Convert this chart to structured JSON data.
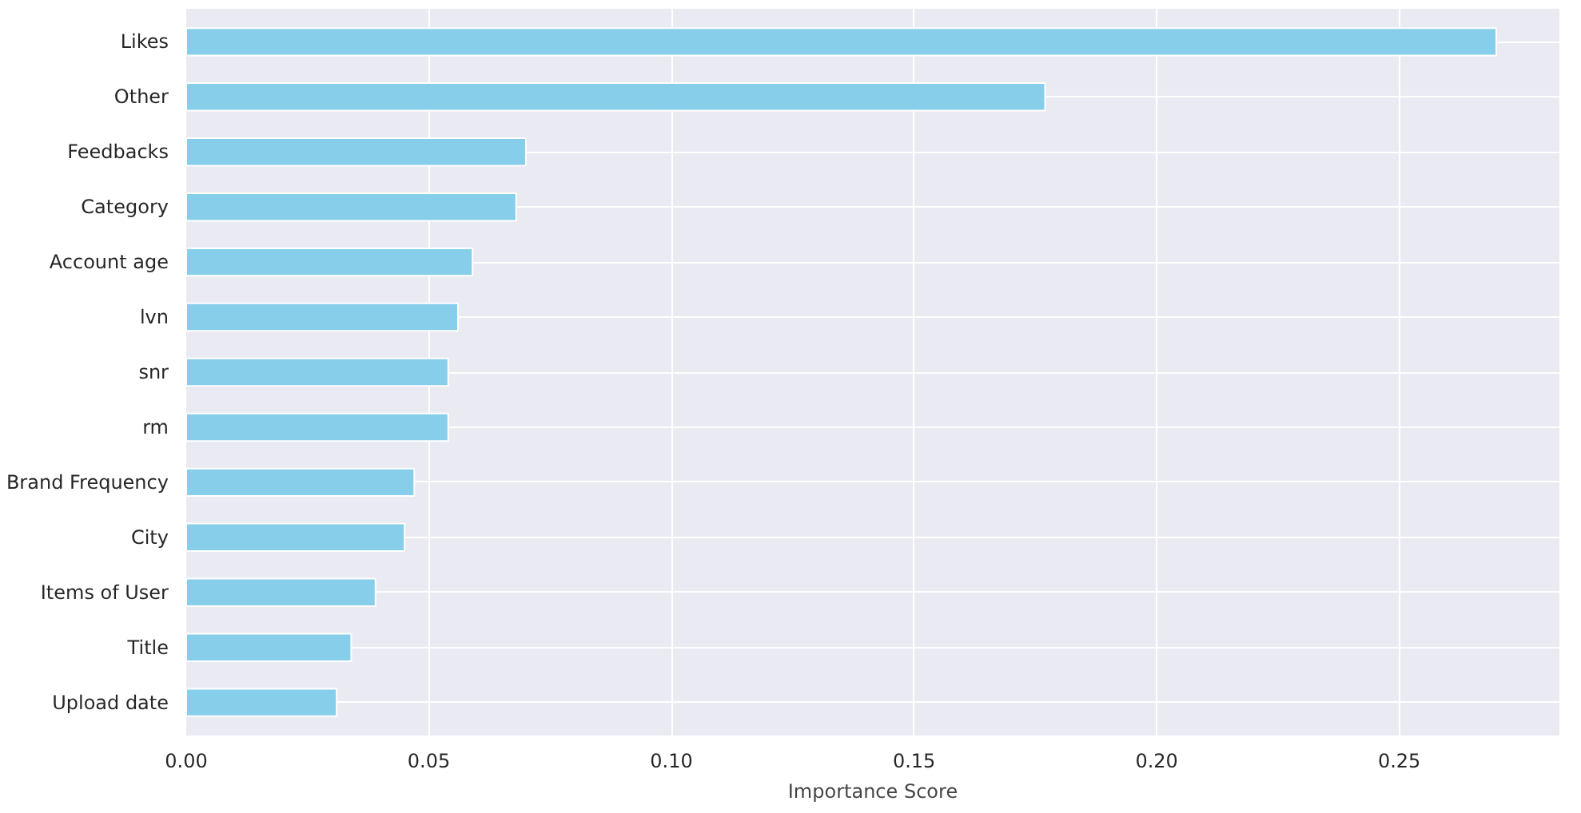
{
  "chart_data": {
    "type": "bar",
    "orientation": "horizontal",
    "xlabel": "Importance Score",
    "categories": [
      "Likes",
      "Other",
      "Feedbacks",
      "Category",
      "Account age",
      "lvn",
      "snr",
      "rm",
      "Brand Frequency",
      "City",
      "Items of User",
      "Title",
      "Upload date"
    ],
    "values": [
      0.27,
      0.177,
      0.07,
      0.068,
      0.059,
      0.056,
      0.054,
      0.054,
      0.047,
      0.045,
      0.039,
      0.034,
      0.031
    ],
    "color": "#87ceeb",
    "xlim": [
      0,
      0.283
    ],
    "xticks": [
      {
        "value": 0,
        "label": "0.00"
      },
      0.05,
      {
        "value": 0.1,
        "label": "0.10"
      },
      0.15,
      {
        "value": 0.2,
        "label": "0.20"
      },
      0.25
    ],
    "grid": true
  }
}
